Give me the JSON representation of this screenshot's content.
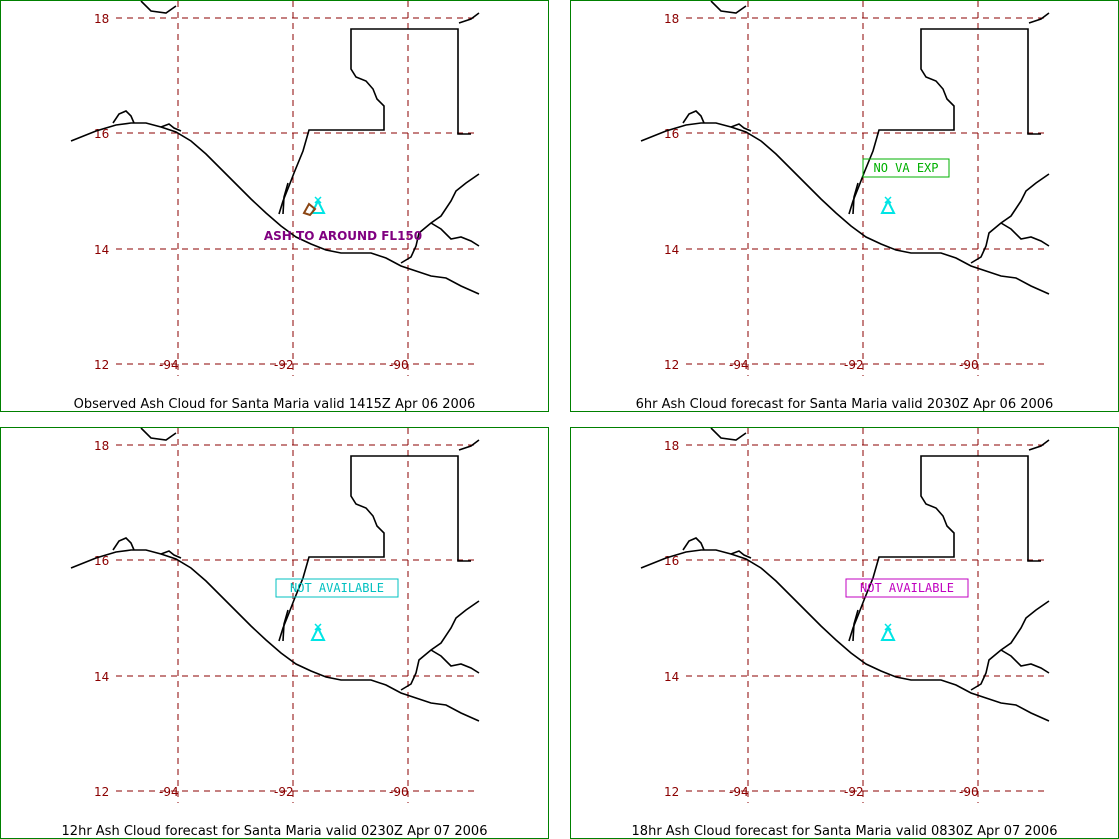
{
  "lat_labels": [
    "18",
    "16",
    "14",
    "12"
  ],
  "lon_labels": [
    "-94",
    "-92",
    "-90"
  ],
  "grid_color": "#8b0000",
  "coast_color": "#000000",
  "volcano_icon": "volcano-triangle-icon",
  "volcano_color": "#00e5e5",
  "panels": [
    {
      "caption": "Observed Ash Cloud for Santa  Maria valid 1415Z Apr 06 2006",
      "label_text": "ASH TO AROUND FL150",
      "label_color": "#800080",
      "label_boxed": false,
      "ash_polygon": true,
      "ash_color": "#8b4513"
    },
    {
      "caption": "6hr Ash Cloud forecast for Santa  Maria valid 2030Z Apr 06 2006",
      "label_text": "NO VA EXP",
      "label_color": "#00b000",
      "label_boxed": true,
      "ash_polygon": false
    },
    {
      "caption": "12hr Ash Cloud forecast for Santa  Maria valid 0230Z Apr 07 2006",
      "label_text": "NOT AVAILABLE",
      "label_color": "#00c0c0",
      "label_boxed": true,
      "ash_polygon": false
    },
    {
      "caption": "18hr Ash Cloud forecast for Santa  Maria valid 0830Z Apr 07 2006",
      "label_text": "NOT AVAILABLE",
      "label_color": "#c000c0",
      "label_boxed": true,
      "ash_polygon": false
    }
  ]
}
